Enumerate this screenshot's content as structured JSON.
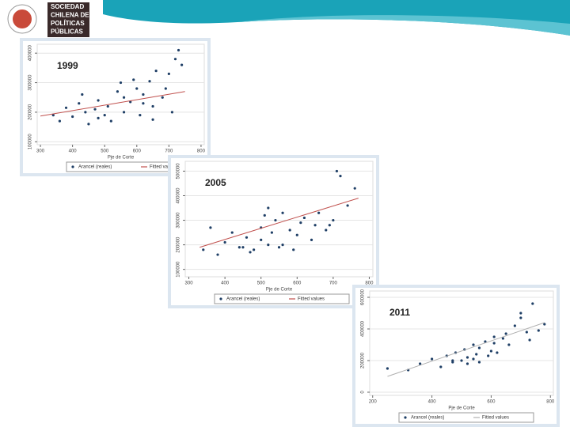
{
  "header": {
    "logo_lines": [
      "SOCIEDAD",
      "CHILENA DE",
      "POLÍTICAS",
      "PÚBLICAS"
    ]
  },
  "chart_data": [
    {
      "type": "scatter",
      "title": "1999",
      "x_label": "Pje de Corte",
      "grid": true,
      "xlim": [
        290,
        810
      ],
      "xticks": [
        300,
        400,
        500,
        600,
        700,
        800
      ],
      "ylim": [
        90000,
        430000
      ],
      "yticks": [
        100000,
        200000,
        300000,
        400000
      ],
      "series": [
        {
          "name": "Arancel (reales)",
          "color": "#1f3f66",
          "x": [
            340,
            360,
            380,
            400,
            420,
            440,
            450,
            470,
            480,
            500,
            510,
            520,
            540,
            550,
            560,
            580,
            590,
            600,
            610,
            620,
            640,
            650,
            660,
            680,
            690,
            700,
            710,
            720,
            740,
            730,
            560,
            620,
            480,
            430,
            650
          ],
          "values": [
            190000,
            170000,
            215000,
            185000,
            230000,
            200000,
            160000,
            210000,
            240000,
            190000,
            220000,
            170000,
            270000,
            300000,
            250000,
            235000,
            310000,
            280000,
            190000,
            260000,
            305000,
            220000,
            340000,
            250000,
            280000,
            330000,
            200000,
            380000,
            360000,
            410000,
            200000,
            230000,
            180000,
            260000,
            175000
          ]
        },
        {
          "name": "Fitted values",
          "color": "#c0504d",
          "type": "line",
          "x": [
            300,
            750
          ],
          "values": [
            187000,
            270000
          ]
        }
      ]
    },
    {
      "type": "scatter",
      "title": "2005",
      "x_label": "Pje de Corte",
      "grid": true,
      "xlim": [
        290,
        810
      ],
      "xticks": [
        300,
        400,
        500,
        600,
        700,
        800
      ],
      "ylim": [
        70000,
        540000
      ],
      "yticks": [
        100000,
        200000,
        300000,
        400000,
        500000
      ],
      "series": [
        {
          "name": "Arancel (reales)",
          "color": "#1f3f66",
          "x": [
            340,
            360,
            380,
            400,
            420,
            440,
            460,
            480,
            500,
            510,
            520,
            540,
            550,
            560,
            580,
            600,
            620,
            640,
            650,
            660,
            680,
            700,
            710,
            720,
            740,
            760,
            500,
            530,
            470,
            560,
            610,
            450,
            690,
            590,
            520
          ],
          "values": [
            180000,
            270000,
            160000,
            210000,
            250000,
            190000,
            230000,
            180000,
            270000,
            320000,
            200000,
            300000,
            190000,
            330000,
            260000,
            240000,
            310000,
            220000,
            280000,
            330000,
            260000,
            300000,
            500000,
            480000,
            360000,
            430000,
            220000,
            250000,
            170000,
            200000,
            290000,
            190000,
            280000,
            180000,
            350000
          ]
        },
        {
          "name": "Fitted values",
          "color": "#c0504d",
          "type": "line",
          "x": [
            330,
            770
          ],
          "values": [
            190000,
            390000
          ]
        }
      ]
    },
    {
      "type": "scatter",
      "title": "2011",
      "x_label": "Pje de Corte",
      "grid": true,
      "xlim": [
        190,
        810
      ],
      "xticks": [
        200,
        400,
        600,
        800
      ],
      "ylim": [
        -20000,
        640000
      ],
      "yticks": [
        0,
        200000,
        400000,
        600000
      ],
      "series": [
        {
          "name": "Arancel (reales)",
          "color": "#1f3f66",
          "x": [
            250,
            320,
            360,
            400,
            430,
            450,
            470,
            480,
            500,
            510,
            520,
            540,
            550,
            560,
            580,
            600,
            610,
            620,
            640,
            660,
            680,
            700,
            720,
            740,
            760,
            780,
            520,
            540,
            590,
            650,
            700,
            730,
            470,
            560,
            610
          ],
          "values": [
            150000,
            140000,
            180000,
            210000,
            160000,
            230000,
            190000,
            250000,
            200000,
            270000,
            220000,
            300000,
            240000,
            280000,
            320000,
            260000,
            350000,
            250000,
            340000,
            300000,
            420000,
            470000,
            380000,
            560000,
            390000,
            430000,
            180000,
            210000,
            230000,
            370000,
            500000,
            330000,
            200000,
            190000,
            310000
          ]
        },
        {
          "name": "Fitted values",
          "color": "#b0b0b0",
          "type": "line",
          "x": [
            250,
            780
          ],
          "values": [
            100000,
            440000
          ]
        }
      ]
    }
  ]
}
